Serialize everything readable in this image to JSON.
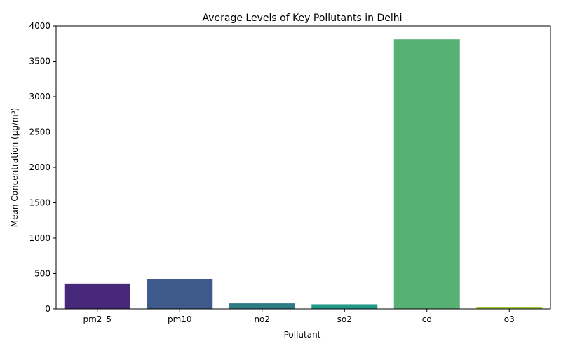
{
  "chart_data": {
    "type": "bar",
    "title": "Average Levels of Key Pollutants in Delhi",
    "xlabel": "Pollutant",
    "ylabel": "Mean Concentration (µg/m³)",
    "categories": [
      "pm2_5",
      "pm10",
      "no2",
      "so2",
      "co",
      "o3"
    ],
    "values": [
      358,
      422,
      78,
      65,
      3810,
      25
    ],
    "colors": [
      "#482878",
      "#3e5a8c",
      "#2e7b86",
      "#229a89",
      "#57b174",
      "#a3c93f"
    ],
    "ylim": [
      0,
      4000
    ],
    "yticks": [
      0,
      500,
      1000,
      1500,
      2000,
      2500,
      3000,
      3500,
      4000
    ],
    "grid": false,
    "legend": "none"
  }
}
